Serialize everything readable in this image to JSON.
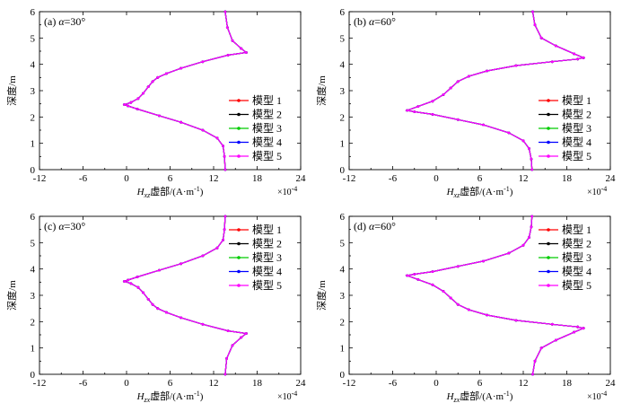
{
  "chart_data": [
    {
      "type": "line",
      "panel_label": "(a) α=30°",
      "panel_prefix": "(a) ",
      "panel_alpha": "α",
      "panel_value": "=30°",
      "xlabel_var": "H",
      "xlabel_sub": "xz",
      "xlabel_rest": "虚部/(A·m",
      "xlabel_sup": "-1",
      "xlabel_close": ")",
      "x_multiplier": "×10",
      "x_multiplier_exp": "-4",
      "ylabel": "深度/m",
      "xlim": [
        -12,
        24
      ],
      "ylim": [
        0,
        6
      ],
      "xticks": [
        "-12",
        "-6",
        "0",
        "6",
        "12",
        "18",
        "24"
      ],
      "yticks": [
        "0",
        "1",
        "2",
        "3",
        "4",
        "5",
        "6"
      ],
      "legend_position": "right",
      "series": [
        {
          "name": "模型 1",
          "color": "#ff0000"
        },
        {
          "name": "模型 2",
          "color": "#000000"
        },
        {
          "name": "模型 3",
          "color": "#00cc00"
        },
        {
          "name": "模型 4",
          "color": "#0000ff"
        },
        {
          "name": "模型 5",
          "color": "#ff00ff"
        }
      ],
      "curve": {
        "x": [
          13.6,
          13.5,
          13.3,
          12.5,
          10.5,
          7.5,
          4.5,
          1.5,
          0.2,
          -0.3,
          0.6,
          1.6,
          2.3,
          3.0,
          3.6,
          4.3,
          5.5,
          7.5,
          10.5,
          14.0,
          16.5,
          15.8,
          14.6,
          13.9,
          13.6
        ],
        "y": [
          0.0,
          0.5,
          0.9,
          1.2,
          1.5,
          1.8,
          2.05,
          2.3,
          2.42,
          2.47,
          2.55,
          2.7,
          2.9,
          3.15,
          3.35,
          3.5,
          3.65,
          3.85,
          4.1,
          4.35,
          4.45,
          4.6,
          4.9,
          5.4,
          6.0
        ]
      }
    },
    {
      "type": "line",
      "panel_label": "(b) α=60°",
      "panel_prefix": "(b) ",
      "panel_alpha": "α",
      "panel_value": "=60°",
      "xlabel_var": "H",
      "xlabel_sub": "xz",
      "xlabel_rest": "虚部/(A·m",
      "xlabel_sup": "-1",
      "xlabel_close": ")",
      "x_multiplier": "×10",
      "x_multiplier_exp": "-4",
      "ylabel": "深度/m",
      "xlim": [
        -12,
        24
      ],
      "ylim": [
        0,
        6
      ],
      "xticks": [
        "-12",
        "-6",
        "0",
        "6",
        "12",
        "18",
        "24"
      ],
      "yticks": [
        "0",
        "1",
        "2",
        "3",
        "4",
        "5",
        "6"
      ],
      "legend_position": "right",
      "series": [
        {
          "name": "模型 1",
          "color": "#ff0000"
        },
        {
          "name": "模型 2",
          "color": "#000000"
        },
        {
          "name": "模型 3",
          "color": "#00cc00"
        },
        {
          "name": "模型 4",
          "color": "#0000ff"
        },
        {
          "name": "模型 5",
          "color": "#ff00ff"
        }
      ],
      "curve": {
        "x": [
          13.2,
          13.1,
          12.8,
          12.0,
          10.0,
          6.5,
          3.0,
          -0.5,
          -3.0,
          -4.0,
          -2.5,
          -0.5,
          1.0,
          2.0,
          3.0,
          4.5,
          7.0,
          11.0,
          16.0,
          19.5,
          20.3,
          19.0,
          16.5,
          14.5,
          13.6,
          13.3
        ],
        "y": [
          0.0,
          0.4,
          0.8,
          1.1,
          1.4,
          1.7,
          1.9,
          2.1,
          2.2,
          2.25,
          2.4,
          2.6,
          2.85,
          3.1,
          3.35,
          3.55,
          3.75,
          3.95,
          4.1,
          4.2,
          4.25,
          4.4,
          4.7,
          5.0,
          5.5,
          6.0
        ]
      }
    },
    {
      "type": "line",
      "panel_label": "(c) α=30°",
      "panel_prefix": "(c) ",
      "panel_alpha": "α",
      "panel_value": "=30°",
      "xlabel_var": "H",
      "xlabel_sub": "zx",
      "xlabel_rest": "虚部/(A·m",
      "xlabel_sup": "-1",
      "xlabel_close": ")",
      "x_multiplier": "×10",
      "x_multiplier_exp": "-4",
      "ylabel": "深度/m",
      "xlim": [
        -12,
        24
      ],
      "ylim": [
        0,
        6
      ],
      "xticks": [
        "-12",
        "-6",
        "0",
        "6",
        "12",
        "18",
        "24"
      ],
      "yticks": [
        "0",
        "1",
        "2",
        "3",
        "4",
        "5",
        "6"
      ],
      "legend_position": "top-right",
      "series": [
        {
          "name": "模型 1",
          "color": "#ff0000"
        },
        {
          "name": "模型 2",
          "color": "#000000"
        },
        {
          "name": "模型 3",
          "color": "#00cc00"
        },
        {
          "name": "模型 4",
          "color": "#0000ff"
        },
        {
          "name": "模型 5",
          "color": "#ff00ff"
        }
      ],
      "curve": {
        "x": [
          13.6,
          13.8,
          14.6,
          15.8,
          16.5,
          14.0,
          10.5,
          7.5,
          5.5,
          4.3,
          3.6,
          3.0,
          2.3,
          1.6,
          0.6,
          -0.3,
          0.2,
          1.5,
          4.5,
          7.5,
          10.5,
          12.5,
          13.3,
          13.5,
          13.6
        ],
        "y": [
          0.0,
          0.6,
          1.1,
          1.4,
          1.55,
          1.65,
          1.9,
          2.15,
          2.35,
          2.5,
          2.65,
          2.85,
          3.1,
          3.3,
          3.45,
          3.53,
          3.58,
          3.7,
          3.95,
          4.2,
          4.5,
          4.8,
          5.1,
          5.5,
          6.0
        ]
      }
    },
    {
      "type": "line",
      "panel_label": "(d) α=60°",
      "panel_prefix": "(d) ",
      "panel_alpha": "α",
      "panel_value": "=60°",
      "xlabel_var": "H",
      "xlabel_sub": "zx",
      "xlabel_rest": "虚部/(A·m",
      "xlabel_sup": "-1",
      "xlabel_close": ")",
      "x_multiplier": "×10",
      "x_multiplier_exp": "-4",
      "ylabel": "深度/m",
      "xlim": [
        -12,
        24
      ],
      "ylim": [
        0,
        6
      ],
      "xticks": [
        "-12",
        "-6",
        "0",
        "6",
        "12",
        "18",
        "24"
      ],
      "yticks": [
        "0",
        "1",
        "2",
        "3",
        "4",
        "5",
        "6"
      ],
      "legend_position": "top-right",
      "series": [
        {
          "name": "模型 1",
          "color": "#ff0000"
        },
        {
          "name": "模型 2",
          "color": "#000000"
        },
        {
          "name": "模型 3",
          "color": "#00cc00"
        },
        {
          "name": "模型 4",
          "color": "#0000ff"
        },
        {
          "name": "模型 5",
          "color": "#ff00ff"
        }
      ],
      "curve": {
        "x": [
          13.3,
          13.6,
          14.5,
          16.5,
          19.0,
          20.3,
          19.5,
          16.0,
          11.0,
          7.0,
          4.5,
          3.0,
          2.0,
          1.0,
          -0.5,
          -2.5,
          -4.0,
          -3.0,
          -0.5,
          3.0,
          6.5,
          10.0,
          12.0,
          12.8,
          13.1,
          13.2
        ],
        "y": [
          0.0,
          0.5,
          1.0,
          1.3,
          1.6,
          1.75,
          1.8,
          1.9,
          2.05,
          2.25,
          2.45,
          2.65,
          2.9,
          3.15,
          3.4,
          3.6,
          3.75,
          3.8,
          3.9,
          4.1,
          4.3,
          4.6,
          4.9,
          5.2,
          5.6,
          6.0
        ]
      }
    }
  ]
}
